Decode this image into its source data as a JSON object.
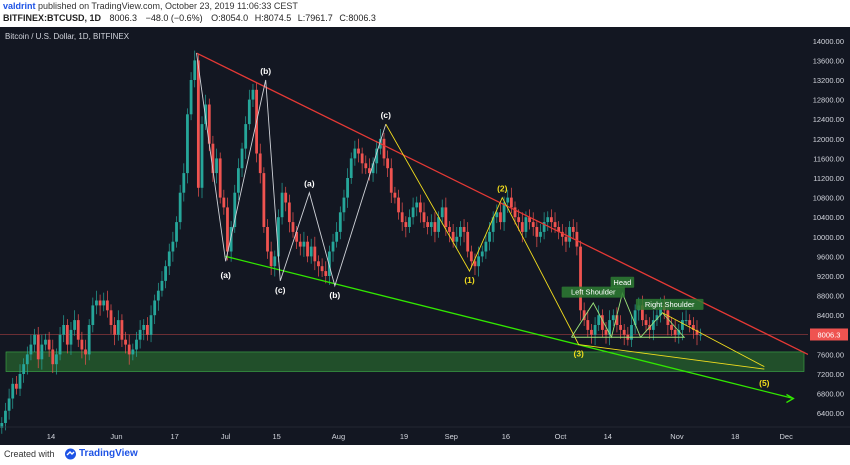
{
  "header": {
    "author": "valdrint",
    "published": "published on TradingView.com, October 23, 2019 11:06:33 CEST",
    "symbol": "BITFINEX:BTCUSD, 1D",
    "last": "8006.3",
    "change": "−48.0 (−0.6%)",
    "open_label": "O:",
    "open": "8054.0",
    "high_label": "H:",
    "high": "8074.5",
    "low_label": "L:",
    "low": "7961.7",
    "close_label": "C:",
    "close": "8006.3"
  },
  "footer": {
    "created_with": "Created with",
    "brand": "TradingView"
  },
  "colors": {
    "background": "#131722",
    "up": "#26a69a",
    "down": "#ef5350",
    "upper_trendline": "#e53935",
    "lower_trendline": "#31e800",
    "wave_lines": "#f2dd1e",
    "support_zone": "#2e7d32",
    "price_line": "#ef5350"
  },
  "chart_data": {
    "type": "candlestick",
    "title": "Bitcoin / U.S. Dollar, 1D, BITFINEX",
    "xlabel": "",
    "ylabel": "",
    "ylim": [
      6200,
      14200
    ],
    "yticks": [
      6400,
      6800,
      7200,
      7600,
      8000,
      8400,
      8800,
      9200,
      9600,
      10000,
      10400,
      10800,
      11200,
      11600,
      12000,
      12400,
      12800,
      13200,
      13600,
      14000
    ],
    "xtick_labels": [
      "14",
      "Jun",
      "17",
      "Jul",
      "15",
      "Aug",
      "19",
      "Sep",
      "16",
      "Oct",
      "14",
      "Nov",
      "18",
      "Dec"
    ],
    "xtick_days": [
      14,
      32,
      48,
      62,
      76,
      93,
      111,
      124,
      139,
      154,
      167,
      186,
      202,
      216
    ],
    "x_days": 222,
    "current_price": 8006.3,
    "grid": false,
    "close": [
      6200,
      6450,
      6700,
      7000,
      6900,
      7200,
      7400,
      7600,
      7800,
      8000,
      7500,
      7800,
      7900,
      7700,
      7400,
      7600,
      8000,
      8200,
      7800,
      8100,
      8300,
      7900,
      7700,
      7600,
      8200,
      8600,
      8700,
      8600,
      8700,
      8500,
      8200,
      8000,
      8300,
      7900,
      7800,
      7600,
      7700,
      7900,
      8100,
      8200,
      8000,
      8400,
      8700,
      8900,
      9100,
      9400,
      9700,
      9900,
      10300,
      10900,
      11300,
      12500,
      13200,
      13600,
      11000,
      12300,
      12700,
      11900,
      11300,
      11600,
      10800,
      10600,
      9700,
      10200,
      10900,
      11400,
      11800,
      12300,
      12800,
      13000,
      11700,
      11300,
      10200,
      9700,
      9400,
      9600,
      10400,
      10900,
      10700,
      10300,
      10100,
      9900,
      9800,
      9900,
      9600,
      9800,
      9500,
      9400,
      9300,
      9200,
      9700,
      9900,
      10100,
      10500,
      10800,
      11200,
      11600,
      11800,
      11700,
      11500,
      11400,
      11300,
      11500,
      11800,
      12000,
      11600,
      11400,
      10900,
      10800,
      10500,
      10300,
      10200,
      10400,
      10600,
      10700,
      10500,
      10300,
      10200,
      10300,
      10100,
      10400,
      10600,
      10200,
      10100,
      9900,
      10000,
      10200,
      10100,
      9700,
      9500,
      9400,
      9600,
      9700,
      9900,
      10100,
      10400,
      10500,
      10300,
      10700,
      10800,
      10600,
      10400,
      10300,
      10100,
      10400,
      10300,
      10200,
      10000,
      10100,
      10300,
      10400,
      10300,
      10200,
      10100,
      10000,
      9900,
      10200,
      10100,
      9800,
      8500,
      8300,
      8100,
      8000,
      8200,
      8400,
      8100,
      8000,
      8300,
      8400,
      8200,
      8100,
      8000,
      7900,
      8200,
      8500,
      8600,
      8300,
      8200,
      8100,
      8300,
      8400,
      8600,
      8500,
      8200,
      8100,
      8000,
      8100,
      8300,
      8300,
      8200,
      8100,
      8000,
      8006
    ],
    "swings": [
      {
        "label": "(a)",
        "day": 62,
        "price": 9400
      },
      {
        "label": "(b)",
        "day": 73,
        "price": 13200
      },
      {
        "label": "(c)",
        "day": 77,
        "price": 9100
      },
      {
        "label": "(a)",
        "day": 85,
        "price": 10900
      },
      {
        "label": "(b)",
        "day": 92,
        "price": 9000
      },
      {
        "label": "(c)",
        "day": 106,
        "price": 12300
      },
      {
        "label": "(1)",
        "day": 129,
        "price": 9300
      },
      {
        "label": "(2)",
        "day": 138,
        "price": 10800
      },
      {
        "label": "(3)",
        "day": 159,
        "price": 7800
      },
      {
        "label": "(5)",
        "day": 210,
        "price": 7200
      }
    ],
    "annotations": [
      "Left Shoulder",
      "Head",
      "Right Shoulder"
    ],
    "support_zone": [
      7250,
      7650
    ]
  }
}
